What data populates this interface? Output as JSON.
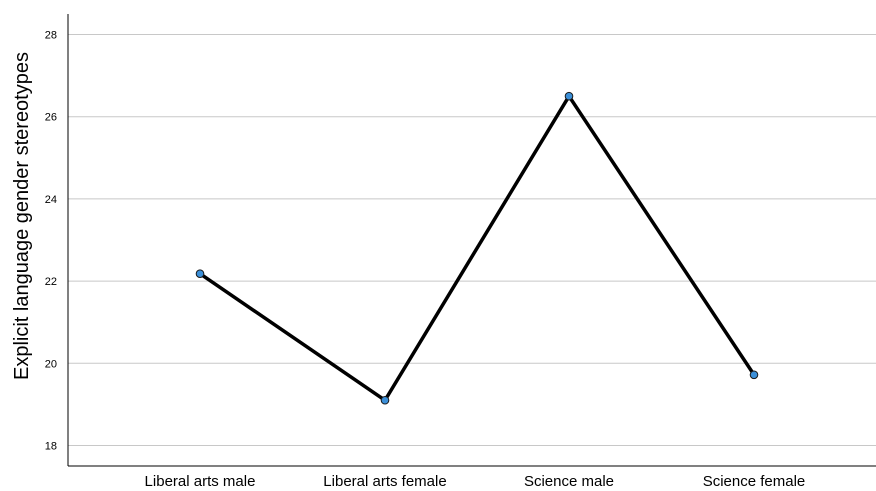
{
  "chart_data": {
    "type": "line",
    "title": "",
    "xlabel": "",
    "ylabel": "Explicit language gender stereotypes",
    "categories": [
      "Liberal arts male",
      "Liberal arts female",
      "Science male",
      "Science female"
    ],
    "values": [
      22.18,
      19.1,
      26.5,
      19.72
    ],
    "ylim": [
      17.5,
      28.5
    ],
    "yticks": [
      18,
      20,
      22,
      24,
      26,
      28
    ],
    "grid": "horizontal",
    "legend": "none",
    "line_color": "#000000",
    "marker_color": "#3b8fd8",
    "marker_edge_color": "#1a1a1a",
    "grid_color": "#c8c8c8"
  }
}
